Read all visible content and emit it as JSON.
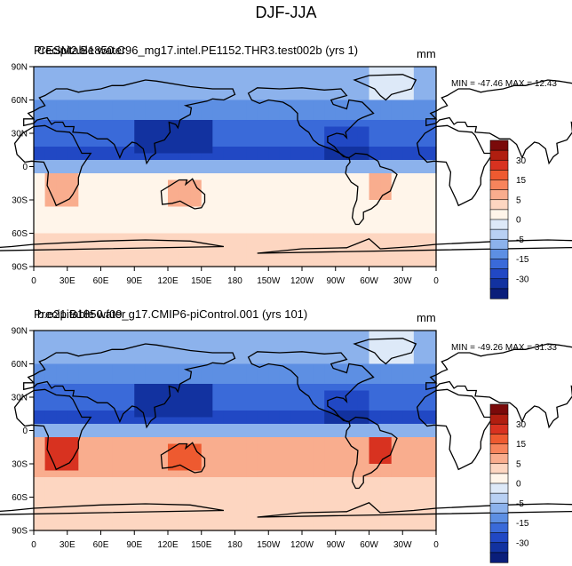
{
  "title": "DJF-JJA",
  "colorbar": {
    "levels": [
      "30",
      "15",
      "5",
      "0",
      "-5",
      "-15",
      "-30"
    ],
    "colors": [
      "#7a0a0a",
      "#b01e10",
      "#d83220",
      "#ee5a30",
      "#f7845c",
      "#f9ad8e",
      "#fdd6c1",
      "#fff5ea",
      "#dde9f8",
      "#b8d0f3",
      "#8cb2ec",
      "#5d8fe3",
      "#3a6ad9",
      "#2148c4",
      "#1232a0",
      "#0a1e7a"
    ]
  },
  "axes": {
    "lon_ticks": [
      "0",
      "30E",
      "60E",
      "90E",
      "120E",
      "150E",
      "180",
      "150W",
      "120W",
      "90W",
      "60W",
      "30W",
      "0"
    ],
    "lat_ticks": [
      "90N",
      "60N",
      "30N",
      "0",
      "30S",
      "60S",
      "90S"
    ]
  },
  "panels": [
    {
      "variable": "Precipitable water",
      "case": "CESM2.B1850.C96_mg17.intel.PE1152.THR3.test002b (yrs 1)",
      "units": "mm",
      "stats": "MIN = -47.46 MAX =  12.43",
      "min": -47.46,
      "max": 12.43
    },
    {
      "variable": "Precipitable water",
      "case": "b.e21.B1850.f09_g17.CMIP6-piControl.001 (yrs 101)",
      "units": "mm",
      "stats": "MIN = -49.26 MAX =  31.33",
      "min": -49.26,
      "max": 31.33
    }
  ]
}
